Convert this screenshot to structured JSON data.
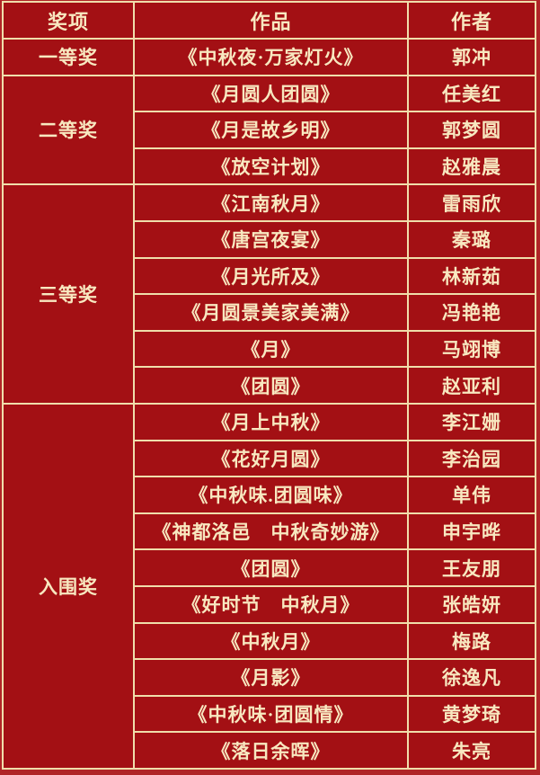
{
  "colors": {
    "background": "#b02527",
    "cell": "#a31014",
    "border": "#f0deab",
    "text": "#f8e8c0"
  },
  "table": {
    "headers": [
      "奖项",
      "作品",
      "作者"
    ],
    "groups": [
      {
        "award": "一等奖",
        "entries": [
          {
            "work": "《中秋夜·万家灯火》",
            "author": "郭冲"
          }
        ]
      },
      {
        "award": "二等奖",
        "entries": [
          {
            "work": "《月圆人团圆》",
            "author": "任美红"
          },
          {
            "work": "《月是故乡明》",
            "author": "郭梦圆"
          },
          {
            "work": "《放空计划》",
            "author": "赵雅晨"
          }
        ]
      },
      {
        "award": "三等奖",
        "entries": [
          {
            "work": "《江南秋月》",
            "author": "雷雨欣"
          },
          {
            "work": "《唐宫夜宴》",
            "author": "秦璐"
          },
          {
            "work": "《月光所及》",
            "author": "林新茹"
          },
          {
            "work": "《月圆景美家美满》",
            "author": "冯艳艳"
          },
          {
            "work": "《月》",
            "author": "马翊博"
          },
          {
            "work": "《团圆》",
            "author": "赵亚利"
          }
        ]
      },
      {
        "award": "入围奖",
        "entries": [
          {
            "work": "《月上中秋》",
            "author": "李江姗"
          },
          {
            "work": "《花好月圆》",
            "author": "李治园"
          },
          {
            "work": "《中秋味.团圆味》",
            "author": "单伟"
          },
          {
            "work": "《神都洛邑　中秋奇妙游》",
            "author": "申宇晔"
          },
          {
            "work": "《团圆》",
            "author": "王友朋"
          },
          {
            "work": "《好时节　中秋月》",
            "author": "张皓妍"
          },
          {
            "work": "《中秋月》",
            "author": "梅路"
          },
          {
            "work": "《月影》",
            "author": "徐逸凡"
          },
          {
            "work": "《中秋味·团圆情》",
            "author": "黄梦琦"
          },
          {
            "work": "《落日余晖》",
            "author": "朱亮"
          }
        ]
      }
    ]
  }
}
